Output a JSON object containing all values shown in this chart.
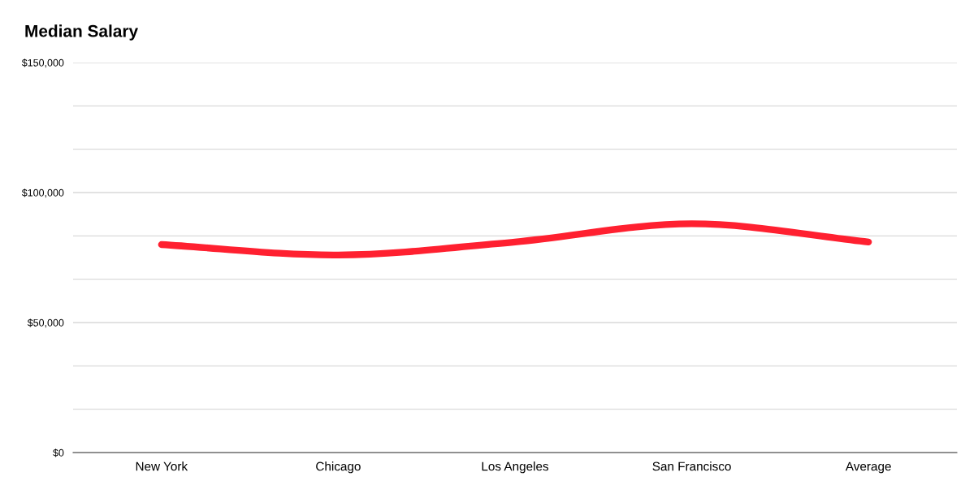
{
  "chart_data": {
    "type": "line",
    "title": "Median Salary",
    "categories": [
      "New York",
      "Chicago",
      "Los Angeles",
      "San Francisco",
      "Average"
    ],
    "series": [
      {
        "color": "#ff2030",
        "values": [
          80000,
          76000,
          81000,
          88000,
          81000
        ]
      }
    ],
    "ylim": [
      0,
      150000
    ],
    "yticks": [
      {
        "value": 0,
        "label": "$0"
      },
      {
        "value": 16666.67,
        "label": null
      },
      {
        "value": 33333.33,
        "label": null
      },
      {
        "value": 50000,
        "label": "$50,000"
      },
      {
        "value": 66666.67,
        "label": null
      },
      {
        "value": 83333.33,
        "label": null
      },
      {
        "value": 100000,
        "label": "$100,000"
      },
      {
        "value": 116666.67,
        "label": null
      },
      {
        "value": 133333.33,
        "label": null
      },
      {
        "value": 150000,
        "label": "$150,000"
      }
    ],
    "grid": "y",
    "marker": "none",
    "line_style": "solid"
  }
}
